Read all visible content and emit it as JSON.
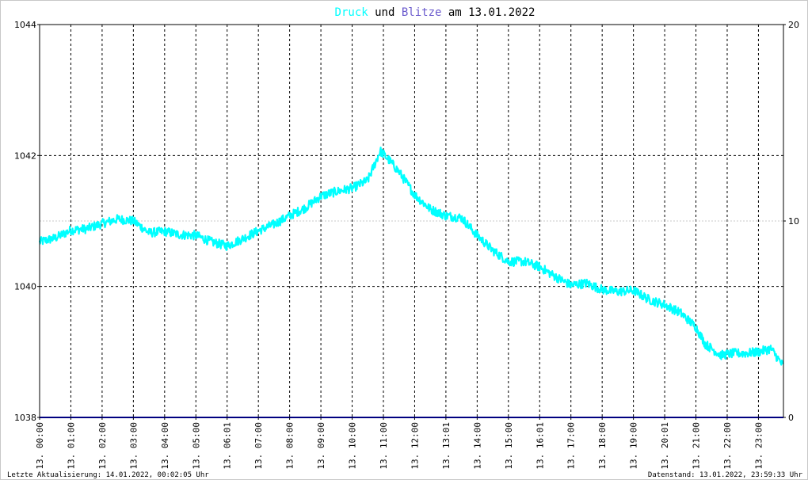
{
  "chart_data": {
    "type": "line",
    "title_parts": {
      "series1": "Druck",
      "mid": " und ",
      "series2": "Blitze",
      "tail": " am 13.01.2022"
    },
    "x_labels": [
      "13. 00:00",
      "13. 01:00",
      "13. 02:00",
      "13. 03:00",
      "13. 04:00",
      "13. 05:00",
      "13. 06:01",
      "13. 07:00",
      "13. 08:00",
      "13. 09:00",
      "13. 10:00",
      "13. 11:00",
      "13. 12:00",
      "13. 13:01",
      "13. 14:00",
      "13. 15:00",
      "13. 16:01",
      "13. 17:00",
      "13. 18:00",
      "13. 19:00",
      "13. 20:01",
      "13. 21:00",
      "13. 22:00",
      "13. 23:00"
    ],
    "y_left": {
      "ticks": [
        "1044",
        "1042",
        "1040",
        "1038"
      ],
      "ylim": [
        1038,
        1044
      ]
    },
    "y_right": {
      "ticks": [
        "20",
        "10",
        "0"
      ],
      "ylim": [
        0,
        20
      ]
    },
    "xlim_hours": [
      0,
      23.8
    ],
    "grid": true,
    "series": [
      {
        "name": "Druck",
        "color": "#00ffff",
        "axis": "left",
        "points": [
          [
            0,
            1040.68
          ],
          [
            0.5,
            1040.74
          ],
          [
            1.0,
            1040.86
          ],
          [
            1.5,
            1040.88
          ],
          [
            2.0,
            1040.96
          ],
          [
            2.5,
            1041.03
          ],
          [
            3.0,
            1041.0
          ],
          [
            3.5,
            1040.82
          ],
          [
            4.0,
            1040.84
          ],
          [
            4.5,
            1040.79
          ],
          [
            5.0,
            1040.78
          ],
          [
            5.5,
            1040.68
          ],
          [
            6.0,
            1040.62
          ],
          [
            6.5,
            1040.73
          ],
          [
            7.0,
            1040.85
          ],
          [
            7.5,
            1040.95
          ],
          [
            8.0,
            1041.08
          ],
          [
            8.5,
            1041.2
          ],
          [
            9.0,
            1041.38
          ],
          [
            9.5,
            1041.45
          ],
          [
            10.0,
            1041.5
          ],
          [
            10.5,
            1041.62
          ],
          [
            10.9,
            1042.07
          ],
          [
            11.2,
            1041.92
          ],
          [
            11.5,
            1041.75
          ],
          [
            12.0,
            1041.4
          ],
          [
            12.5,
            1041.18
          ],
          [
            13.0,
            1041.08
          ],
          [
            13.5,
            1041.05
          ],
          [
            14.0,
            1040.78
          ],
          [
            14.5,
            1040.55
          ],
          [
            15.0,
            1040.38
          ],
          [
            15.5,
            1040.38
          ],
          [
            16.0,
            1040.3
          ],
          [
            16.5,
            1040.15
          ],
          [
            17.0,
            1040.02
          ],
          [
            17.5,
            1040.05
          ],
          [
            18.0,
            1039.95
          ],
          [
            18.5,
            1039.92
          ],
          [
            19.0,
            1039.94
          ],
          [
            19.5,
            1039.8
          ],
          [
            20.0,
            1039.72
          ],
          [
            20.5,
            1039.6
          ],
          [
            21.0,
            1039.38
          ],
          [
            21.3,
            1039.12
          ],
          [
            21.8,
            1038.95
          ],
          [
            22.2,
            1038.98
          ],
          [
            22.6,
            1038.98
          ],
          [
            23.0,
            1039.0
          ],
          [
            23.4,
            1039.05
          ],
          [
            23.8,
            1038.78
          ]
        ]
      },
      {
        "name": "Blitze",
        "color": "#000080",
        "axis": "right",
        "points": [
          [
            0,
            0
          ],
          [
            23.8,
            0
          ]
        ]
      }
    ]
  },
  "footer": {
    "left": "Letzte Aktualisierung: 14.01.2022, 00:02:05 Uhr",
    "right": "Datenstand: 13.01.2022, 23:59:33 Uhr"
  }
}
